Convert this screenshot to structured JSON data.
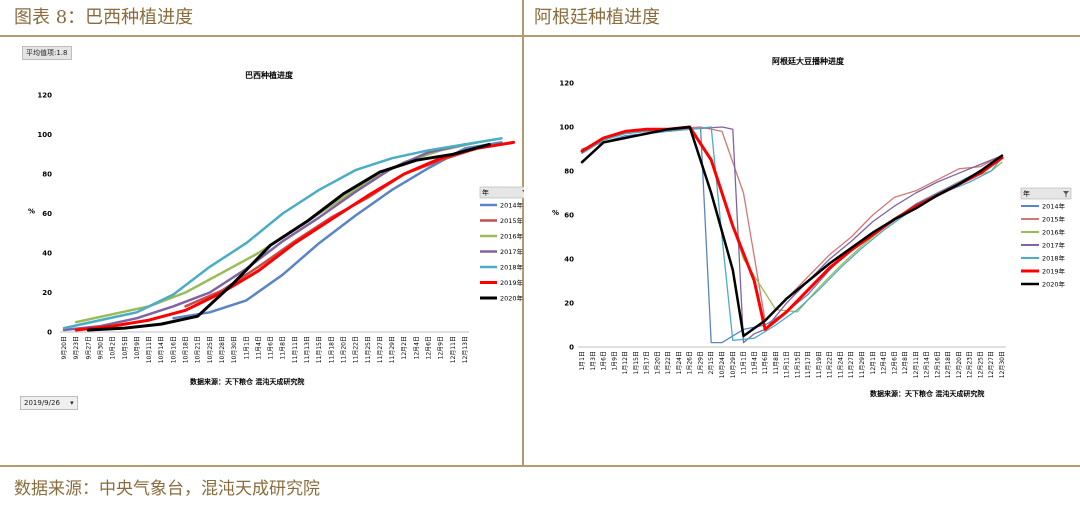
{
  "header": {
    "left_title": "图表 8：巴西种植进度",
    "right_title": "阿根廷种植进度"
  },
  "footer": {
    "source": "数据来源：中央气象台，混沌天成研究院"
  },
  "brazil": {
    "pivot_label": "平均值项:1.8",
    "date_filter": "2019/9/26",
    "date_filter_arrow": "▾",
    "source_note": "数据来源：天下粮仓  混沌天成研究院"
  },
  "argentina": {
    "source_note": "数据来源：天下粮仓  混沌天成研究院"
  },
  "colors": {
    "header_text": "#8a6d3e",
    "rule": "#b39b6e"
  },
  "chart_data": [
    {
      "type": "line",
      "title": "巴西种植进度",
      "ylabel": "%",
      "xlabel": "",
      "ylim": [
        0,
        120
      ],
      "yticks": [
        0,
        20,
        40,
        60,
        80,
        100,
        120
      ],
      "legend_title": "年",
      "legend_position": "right",
      "grid": false,
      "categories": [
        "9月20日",
        "9月23日",
        "9月27日",
        "9月30日",
        "10月2日",
        "10月5日",
        "10月9日",
        "10月11日",
        "10月14日",
        "10月16日",
        "10月18日",
        "10月21日",
        "10月25日",
        "10月28日",
        "10月30日",
        "11月1日",
        "11月4日",
        "11月6日",
        "11月8日",
        "11月11日",
        "11月13日",
        "11月15日",
        "11月18日",
        "11月20日",
        "11月22日",
        "11月25日",
        "11月27日",
        "11月29日",
        "12月2日",
        "12月4日",
        "12月6日",
        "12月9日",
        "12月11日",
        "12月13日"
      ],
      "series": [
        {
          "name": "2014年",
          "color": "#5b84c2",
          "width": 2.5,
          "points": [
            [
              9,
              7
            ],
            [
              12,
              10
            ],
            [
              15,
              16
            ],
            [
              18,
              29
            ],
            [
              21,
              45
            ],
            [
              24,
              59
            ],
            [
              27,
              72
            ],
            [
              30,
              83
            ],
            [
              33,
              93
            ],
            [
              36,
              96
            ]
          ]
        },
        {
          "name": "2015年",
          "color": "#c0504d",
          "width": 2.5,
          "points": [
            [
              10,
              13
            ],
            [
              13,
              21
            ],
            [
              16,
              33
            ],
            [
              19,
              46
            ],
            [
              22,
              58
            ],
            [
              25,
              68
            ],
            [
              28,
              80
            ],
            [
              31,
              87
            ],
            [
              34,
              93
            ]
          ]
        },
        {
          "name": "2016年",
          "color": "#9bbb59",
          "width": 2.5,
          "points": [
            [
              1,
              5
            ],
            [
              4,
              9
            ],
            [
              7,
              13
            ],
            [
              10,
              20
            ],
            [
              13,
              30
            ],
            [
              16,
              40
            ],
            [
              19,
              52
            ],
            [
              22,
              64
            ],
            [
              25,
              76
            ],
            [
              28,
              86
            ],
            [
              31,
              92
            ],
            [
              34,
              96
            ]
          ]
        },
        {
          "name": "2017年",
          "color": "#8064a2",
          "width": 2.5,
          "points": [
            [
              0,
              1
            ],
            [
              3,
              3
            ],
            [
              6,
              7
            ],
            [
              9,
              13
            ],
            [
              12,
              20
            ],
            [
              15,
              32
            ],
            [
              18,
              46
            ],
            [
              21,
              58
            ],
            [
              24,
              71
            ],
            [
              27,
              83
            ],
            [
              30,
              91
            ],
            [
              33,
              95
            ]
          ]
        },
        {
          "name": "2018年",
          "color": "#4bacc6",
          "width": 2.5,
          "points": [
            [
              0,
              2
            ],
            [
              3,
              6
            ],
            [
              6,
              10
            ],
            [
              9,
              19
            ],
            [
              12,
              33
            ],
            [
              15,
              45
            ],
            [
              18,
              60
            ],
            [
              21,
              72
            ],
            [
              24,
              82
            ],
            [
              27,
              88
            ],
            [
              30,
              92
            ],
            [
              33,
              95
            ],
            [
              36,
              98
            ]
          ]
        },
        {
          "name": "2019年",
          "color": "#ff0000",
          "width": 3,
          "points": [
            [
              1,
              1
            ],
            [
              4,
              3
            ],
            [
              7,
              6
            ],
            [
              10,
              11
            ],
            [
              13,
              20
            ],
            [
              16,
              31
            ],
            [
              19,
              45
            ],
            [
              22,
              57
            ],
            [
              25,
              69
            ],
            [
              28,
              80
            ],
            [
              31,
              88
            ],
            [
              34,
              93
            ],
            [
              37,
              96
            ]
          ]
        },
        {
          "name": "2020年",
          "color": "#000000",
          "width": 3,
          "points": [
            [
              2,
              1
            ],
            [
              5,
              2
            ],
            [
              8,
              4
            ],
            [
              11,
              8
            ],
            [
              14,
              25
            ],
            [
              17,
              44
            ],
            [
              20,
              56
            ],
            [
              23,
              70
            ],
            [
              26,
              81
            ],
            [
              29,
              87
            ],
            [
              32,
              90
            ],
            [
              35,
              95
            ]
          ]
        }
      ]
    },
    {
      "type": "line",
      "title": "阿根廷大豆播种进度",
      "ylabel": "%",
      "xlabel": "",
      "ylim": [
        0,
        120
      ],
      "yticks": [
        0,
        20,
        40,
        60,
        80,
        100,
        120
      ],
      "legend_title": "年",
      "legend_position": "right",
      "grid": false,
      "categories": [
        "1月1日",
        "1月3日",
        "1月6日",
        "1月9日",
        "1月12日",
        "1月15日",
        "1月17日",
        "1月20日",
        "1月22日",
        "1月24日",
        "1月26日",
        "1月29日",
        "2月15日",
        "10月24日",
        "10月29日",
        "11月1日",
        "11月4日",
        "11月6日",
        "11月8日",
        "11月11日",
        "11月15日",
        "11月17日",
        "11月19日",
        "11月22日",
        "11月24日",
        "11月27日",
        "11月29日",
        "12月1日",
        "12月4日",
        "12月6日",
        "12月8日",
        "12月11日",
        "12月14日",
        "12月16日",
        "12月18日",
        "12月20日",
        "12月23日",
        "12月25日",
        "12月27日",
        "12月30日"
      ],
      "series": [
        {
          "name": "2014年",
          "color": "#5b84c2",
          "width": 1.3,
          "points": [
            [
              0,
              90
            ],
            [
              2,
              93
            ],
            [
              4,
              96
            ],
            [
              6,
              97
            ],
            [
              8,
              98
            ],
            [
              10,
              99
            ],
            [
              11,
              100
            ],
            [
              12,
              2
            ],
            [
              13,
              2
            ],
            [
              15,
              8
            ],
            [
              17,
              10
            ],
            [
              19,
              16
            ],
            [
              21,
              24
            ],
            [
              23,
              35
            ],
            [
              25,
              45
            ],
            [
              27,
              52
            ],
            [
              29,
              58
            ],
            [
              31,
              65
            ],
            [
              33,
              70
            ],
            [
              35,
              75
            ],
            [
              37,
              80
            ],
            [
              39,
              87
            ]
          ]
        },
        {
          "name": "2015年",
          "color": "#d07878",
          "width": 1.3,
          "points": [
            [
              0,
              89
            ],
            [
              2,
              95
            ],
            [
              4,
              98
            ],
            [
              6,
              99
            ],
            [
              8,
              99
            ],
            [
              11,
              100
            ],
            [
              13,
              98
            ],
            [
              15,
              70
            ],
            [
              17,
              12
            ],
            [
              19,
              22
            ],
            [
              21,
              32
            ],
            [
              23,
              42
            ],
            [
              25,
              50
            ],
            [
              27,
              60
            ],
            [
              29,
              68
            ],
            [
              31,
              71
            ],
            [
              33,
              76
            ],
            [
              35,
              81
            ],
            [
              37,
              82
            ],
            [
              39,
              87
            ]
          ]
        },
        {
          "name": "2016年",
          "color": "#9bbb59",
          "width": 1.3,
          "points": [
            [
              0,
              88
            ],
            [
              2,
              94
            ],
            [
              4,
              97
            ],
            [
              6,
              98
            ],
            [
              8,
              99
            ],
            [
              10,
              100
            ],
            [
              12,
              85
            ],
            [
              15,
              40
            ],
            [
              18,
              17
            ],
            [
              20,
              16
            ],
            [
              22,
              27
            ],
            [
              24,
              37
            ],
            [
              26,
              46
            ],
            [
              28,
              54
            ],
            [
              30,
              61
            ],
            [
              32,
              67
            ],
            [
              34,
              72
            ],
            [
              36,
              77
            ],
            [
              38,
              80
            ],
            [
              39,
              84
            ]
          ]
        },
        {
          "name": "2017年",
          "color": "#8064a2",
          "width": 1.3,
          "points": [
            [
              0,
              89
            ],
            [
              2,
              95
            ],
            [
              4,
              97
            ],
            [
              6,
              98
            ],
            [
              8,
              99
            ],
            [
              10,
              99
            ],
            [
              13,
              100
            ],
            [
              14,
              99
            ],
            [
              15,
              2
            ],
            [
              16,
              6
            ],
            [
              17,
              8
            ],
            [
              19,
              20
            ],
            [
              21,
              30
            ],
            [
              23,
              40
            ],
            [
              25,
              48
            ],
            [
              27,
              57
            ],
            [
              29,
              64
            ],
            [
              31,
              70
            ],
            [
              33,
              75
            ],
            [
              35,
              79
            ],
            [
              37,
              83
            ],
            [
              39,
              87
            ]
          ]
        },
        {
          "name": "2018年",
          "color": "#4bacc6",
          "width": 1.3,
          "points": [
            [
              0,
              88
            ],
            [
              2,
              94
            ],
            [
              4,
              97
            ],
            [
              6,
              98
            ],
            [
              8,
              98
            ],
            [
              10,
              99
            ],
            [
              12,
              100
            ],
            [
              13,
              50
            ],
            [
              14,
              3
            ],
            [
              16,
              4
            ],
            [
              18,
              10
            ],
            [
              20,
              17
            ],
            [
              22,
              26
            ],
            [
              24,
              36
            ],
            [
              26,
              45
            ],
            [
              28,
              53
            ],
            [
              30,
              60
            ],
            [
              32,
              66
            ],
            [
              34,
              71
            ],
            [
              36,
              75
            ],
            [
              38,
              80
            ],
            [
              39,
              86
            ]
          ]
        },
        {
          "name": "2019年",
          "color": "#ff0000",
          "width": 3,
          "points": [
            [
              0,
              89
            ],
            [
              2,
              95
            ],
            [
              4,
              98
            ],
            [
              6,
              99
            ],
            [
              8,
              99
            ],
            [
              10,
              100
            ],
            [
              12,
              85
            ],
            [
              14,
              55
            ],
            [
              16,
              30
            ],
            [
              17,
              8
            ],
            [
              19,
              16
            ],
            [
              21,
              26
            ],
            [
              23,
              36
            ],
            [
              25,
              44
            ],
            [
              27,
              51
            ],
            [
              29,
              58
            ],
            [
              31,
              64
            ],
            [
              33,
              69
            ],
            [
              35,
              74
            ],
            [
              37,
              79
            ],
            [
              39,
              86
            ]
          ]
        },
        {
          "name": "2020年",
          "color": "#000000",
          "width": 2.5,
          "points": [
            [
              0,
              84
            ],
            [
              2,
              93
            ],
            [
              4,
              95
            ],
            [
              6,
              97
            ],
            [
              8,
              99
            ],
            [
              10,
              100
            ],
            [
              12,
              70
            ],
            [
              14,
              35
            ],
            [
              15,
              5
            ],
            [
              17,
              12
            ],
            [
              19,
              22
            ],
            [
              21,
              30
            ],
            [
              23,
              38
            ],
            [
              25,
              45
            ],
            [
              27,
              52
            ],
            [
              29,
              58
            ],
            [
              31,
              63
            ],
            [
              33,
              69
            ],
            [
              35,
              74
            ],
            [
              37,
              80
            ],
            [
              39,
              87
            ]
          ]
        }
      ]
    }
  ]
}
